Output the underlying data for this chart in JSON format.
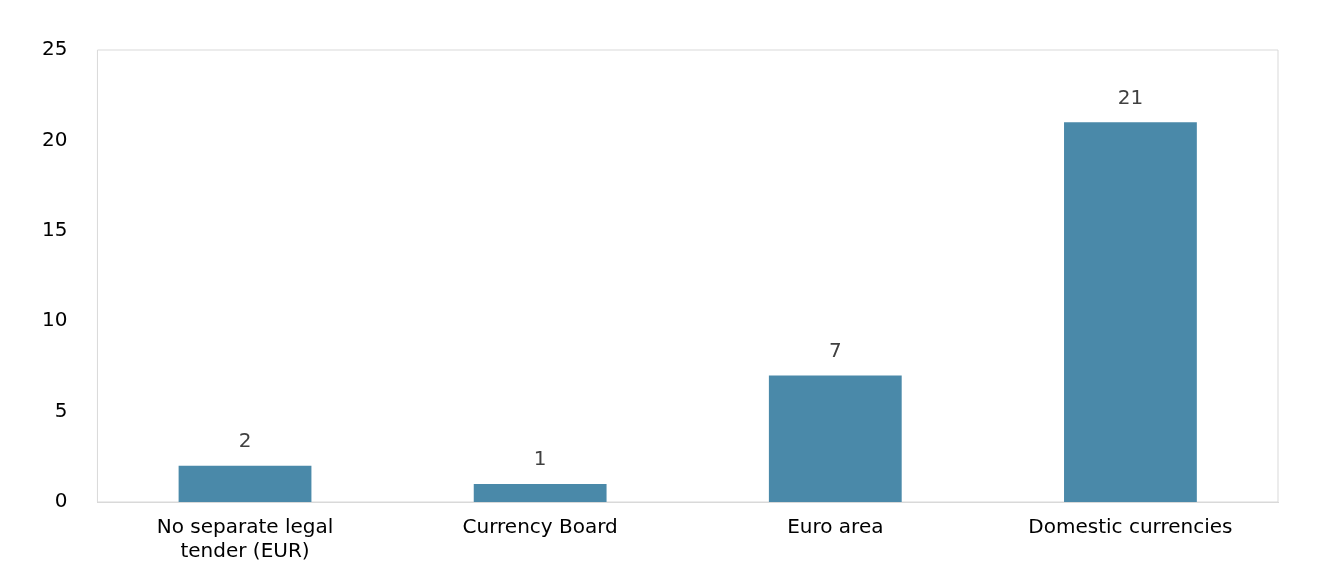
{
  "chart_data": {
    "type": "bar",
    "categories": [
      "No separate legal tender (EUR)",
      "Currency Board",
      "Euro area",
      "Domestic currencies"
    ],
    "values": [
      2,
      1,
      7,
      21
    ],
    "color": "#4a89a9",
    "ylim": [
      0,
      25
    ],
    "yticks": [
      0,
      5,
      10,
      15,
      20,
      25
    ],
    "grid": false,
    "data_labels": true
  }
}
